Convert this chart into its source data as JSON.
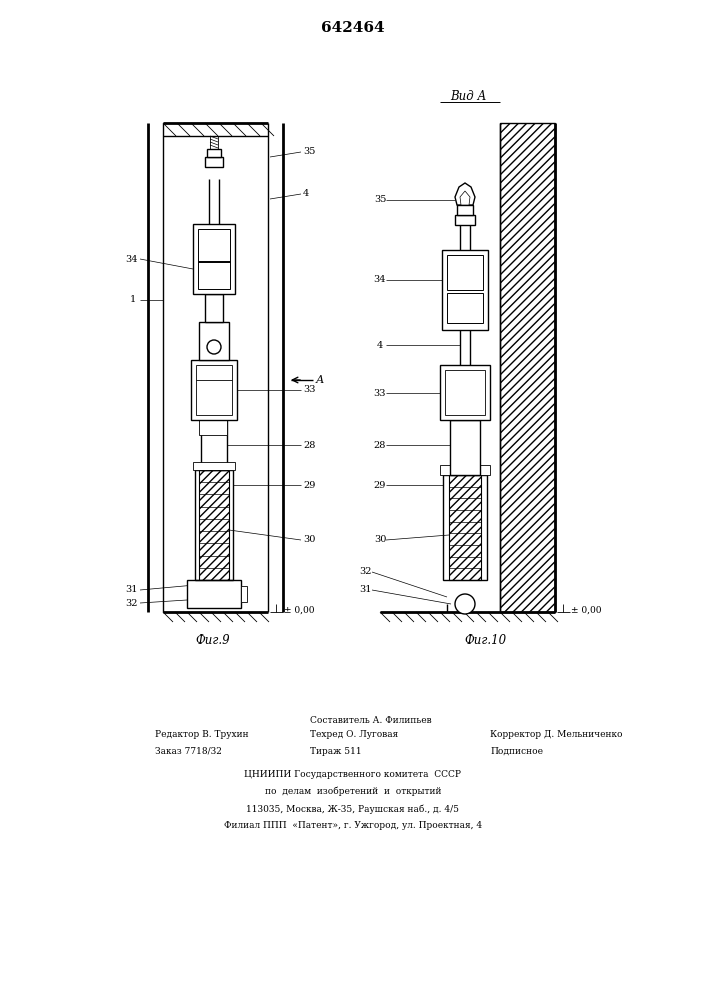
{
  "patent_number": "642464",
  "fig9_label": "Фиг.9",
  "fig10_label": "Фиг.10",
  "vid_a_label": "Вид А",
  "background_color": "#ffffff",
  "line_color": "#000000",
  "lw_main": 1.0,
  "lw_thin": 0.6,
  "lw_thick": 2.0,
  "bottom_col1_line1": "Редактор В. Трухин",
  "bottom_col1_line2": "Заказ 7718/32",
  "bottom_col2_line1": "Составитель А. Филипьев",
  "bottom_col2_line2": "Техред О. Луговая",
  "bottom_col2_line3": "Тираж 511",
  "bottom_col3_line2": "Корректор Д. Мельниченко",
  "bottom_col3_line3": "Подписное",
  "bottom_line4": "ЦНИИПИ Государственного комитета  СССР",
  "bottom_line5": "по  делам  изобретений  и  открытий",
  "bottom_line6": "113035, Москва, Ж-35, Раушская наб., д. 4/5",
  "bottom_line7": "Филиал ППП  «Патент», г. Ужгород, ул. Проектная, 4"
}
